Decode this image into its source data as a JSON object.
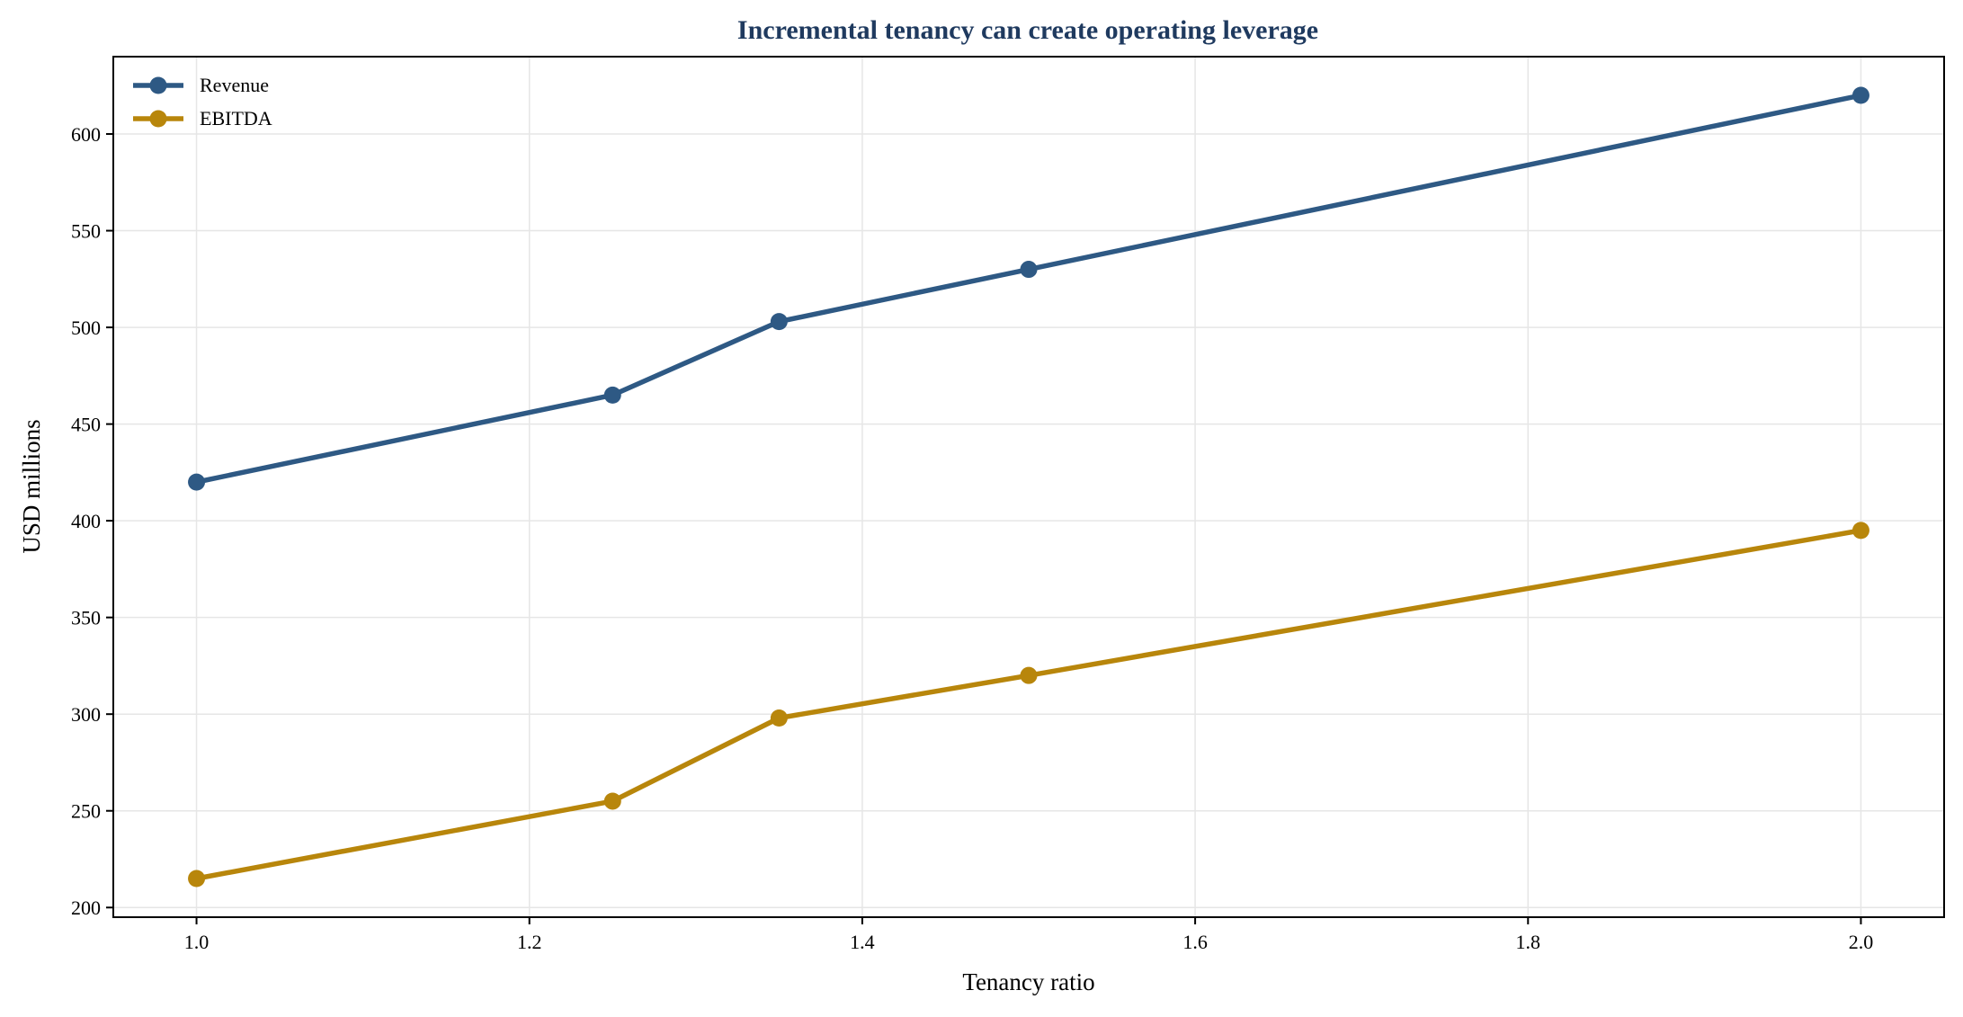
{
  "chart_data": {
    "type": "line",
    "title": "Incremental tenancy can create operating leverage",
    "xlabel": "Tenancy ratio",
    "ylabel": "USD millions",
    "x": [
      1.0,
      1.25,
      1.35,
      1.5,
      2.0
    ],
    "series": [
      {
        "name": "Revenue",
        "values": [
          420,
          465,
          503,
          530,
          620
        ],
        "color": "#2e5984"
      },
      {
        "name": "EBITDA",
        "values": [
          215,
          255,
          298,
          320,
          395
        ],
        "color": "#b8860b"
      }
    ],
    "xlim": [
      0.95,
      2.05
    ],
    "ylim": [
      195,
      640
    ],
    "x_ticks": [
      "1.0",
      "1.2",
      "1.4",
      "1.6",
      "1.8",
      "2.0"
    ],
    "y_ticks": [
      "200",
      "250",
      "300",
      "350",
      "400",
      "450",
      "500",
      "550",
      "600"
    ],
    "grid": true,
    "legend_position": "top-left",
    "colors": {
      "title": "#1f3a5f",
      "grid": "#e6e6e6",
      "axis": "#000000"
    }
  }
}
